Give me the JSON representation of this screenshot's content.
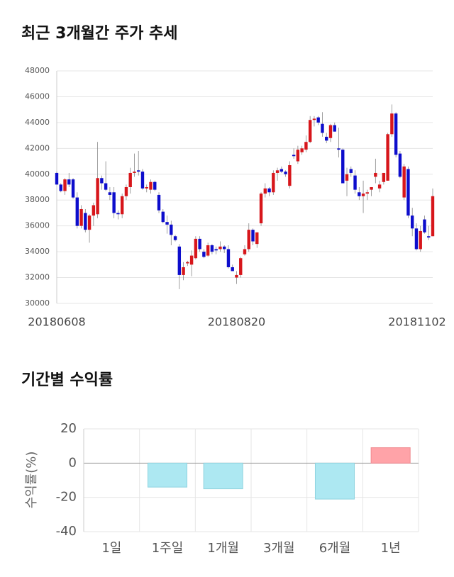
{
  "chart_data": [
    {
      "type": "candlestick",
      "title": "최근 3개월간 주가 추세",
      "categories": [
        "20180608",
        null,
        null,
        null,
        null,
        null,
        null,
        null,
        null,
        null,
        null,
        null,
        null,
        null,
        null,
        null,
        null,
        null,
        null,
        null,
        null,
        null,
        null,
        null,
        null,
        null,
        null,
        null,
        null,
        null,
        null,
        null,
        null,
        null,
        null,
        null,
        null,
        null,
        null,
        null,
        null,
        null,
        null,
        null,
        "20180820",
        null,
        null,
        null,
        null,
        null,
        null,
        null,
        null,
        null,
        null,
        null,
        null,
        null,
        null,
        null,
        null,
        null,
        null,
        null,
        null,
        null,
        null,
        null,
        null,
        null,
        null,
        null,
        null,
        null,
        null,
        null,
        null,
        null,
        null,
        null,
        null,
        null,
        null,
        null,
        null,
        null,
        null,
        null,
        null,
        null,
        null,
        null,
        "20181102"
      ],
      "open": [
        40100,
        39200,
        38700,
        39600,
        39600,
        38200,
        36000,
        37000,
        35700,
        36800,
        36900,
        39700,
        39300,
        38600,
        38600,
        37000,
        36900,
        38300,
        39000,
        40100,
        40300,
        40200,
        38900,
        38800,
        39400,
        38400,
        37100,
        36300,
        36100,
        35200,
        34400,
        32200,
        33100,
        33000,
        33500,
        35000,
        34000,
        33700,
        34500,
        34200,
        34200,
        34400,
        34200,
        32800,
        32000,
        32200,
        33800,
        34200,
        35700,
        34600,
        36200,
        38500,
        38900,
        38600,
        40100,
        40400,
        40200,
        39100,
        41500,
        41000,
        41700,
        41900,
        42500,
        44200,
        44400,
        43900,
        42900,
        42800,
        43800,
        42000,
        41900,
        39500,
        40400,
        39900,
        38600,
        38300,
        38500,
        38800,
        39800,
        38900,
        39400,
        39500,
        43100,
        44700,
        41600,
        38200,
        40400,
        36800,
        35800,
        34200,
        36500,
        35200,
        35200
      ],
      "high": [
        40200,
        39300,
        39700,
        40100,
        39700,
        38600,
        37600,
        37300,
        36900,
        37800,
        42500,
        39900,
        41000,
        39000,
        39000,
        37200,
        38500,
        39200,
        40500,
        41600,
        41800,
        40400,
        39200,
        39600,
        39500,
        38600,
        37300,
        36800,
        36400,
        35300,
        34600,
        33200,
        33300,
        34100,
        35200,
        35200,
        34200,
        34700,
        34600,
        34400,
        34800,
        34500,
        34500,
        33000,
        32500,
        33600,
        34500,
        36200,
        35800,
        35500,
        38600,
        39300,
        39000,
        40300,
        40500,
        40600,
        40300,
        41000,
        42000,
        42200,
        42200,
        43000,
        44500,
        44500,
        44500,
        44800,
        43200,
        43900,
        44000,
        43600,
        42000,
        40500,
        40600,
        40300,
        39000,
        39500,
        38800,
        39000,
        41200,
        39500,
        40100,
        43200,
        45400,
        44800,
        41800,
        40800,
        40600,
        37400,
        36200,
        36000,
        36800,
        36000,
        38900
      ],
      "low": [
        39200,
        38600,
        38400,
        39000,
        38100,
        35800,
        35800,
        35500,
        34700,
        36000,
        36600,
        38800,
        38700,
        38000,
        36600,
        36500,
        36600,
        38000,
        38500,
        39800,
        39900,
        38800,
        38600,
        38500,
        38700,
        37000,
        36200,
        35400,
        34500,
        34800,
        31100,
        31800,
        32900,
        32100,
        33400,
        34000,
        33500,
        33600,
        33800,
        33800,
        34000,
        33900,
        32700,
        32500,
        31500,
        32000,
        33700,
        34000,
        34500,
        34300,
        36000,
        38200,
        38300,
        38400,
        39500,
        40100,
        39800,
        38900,
        41200,
        40800,
        41500,
        41700,
        42400,
        43700,
        43800,
        42900,
        42400,
        42500,
        43300,
        41300,
        39300,
        38300,
        39800,
        38500,
        38000,
        37000,
        38000,
        38300,
        39300,
        38600,
        39200,
        39500,
        42900,
        41300,
        39700,
        38000,
        36600,
        35200,
        34100,
        34000,
        35400,
        34900,
        35200
      ],
      "close": [
        39200,
        38700,
        39600,
        39200,
        38200,
        36000,
        37300,
        35700,
        36800,
        37600,
        39700,
        39300,
        38800,
        38400,
        37000,
        36900,
        38300,
        39000,
        40100,
        40200,
        40200,
        38900,
        39000,
        39400,
        38800,
        37200,
        36300,
        36100,
        35300,
        34900,
        32200,
        32800,
        33200,
        33700,
        35000,
        34200,
        33600,
        34500,
        34000,
        34100,
        34400,
        34200,
        32800,
        32500,
        32200,
        33500,
        34200,
        35700,
        34800,
        35500,
        38500,
        38900,
        38600,
        40100,
        40300,
        40200,
        40000,
        40700,
        41400,
        41900,
        42000,
        42500,
        44200,
        44300,
        44000,
        43200,
        42600,
        43800,
        43300,
        41900,
        39300,
        40000,
        40100,
        38800,
        38300,
        38500,
        38600,
        39000,
        40100,
        39200,
        40100,
        43100,
        44700,
        41500,
        39800,
        40600,
        36800,
        35800,
        34200,
        35600,
        35500,
        35100,
        38300
      ],
      "up_color": "#d7161b",
      "down_color": "#0d0dcc",
      "ylim": [
        30000,
        48000
      ],
      "yticks": [
        30000,
        32000,
        34000,
        36000,
        38000,
        40000,
        42000,
        44000,
        46000,
        48000
      ],
      "grid": true
    },
    {
      "type": "bar",
      "title": "기간별 수익률",
      "ylabel": "수익률(%)",
      "categories": [
        "1일",
        "1주일",
        "1개월",
        "3개월",
        "6개월",
        "1년"
      ],
      "values": [
        0,
        -14,
        -15,
        0,
        -21,
        9
      ],
      "positive_color": "#ffa3a8",
      "negative_color": "#ade8f2",
      "ylim": [
        -40,
        20
      ],
      "yticks": [
        -40,
        -20,
        0,
        20
      ],
      "grid": true
    }
  ]
}
